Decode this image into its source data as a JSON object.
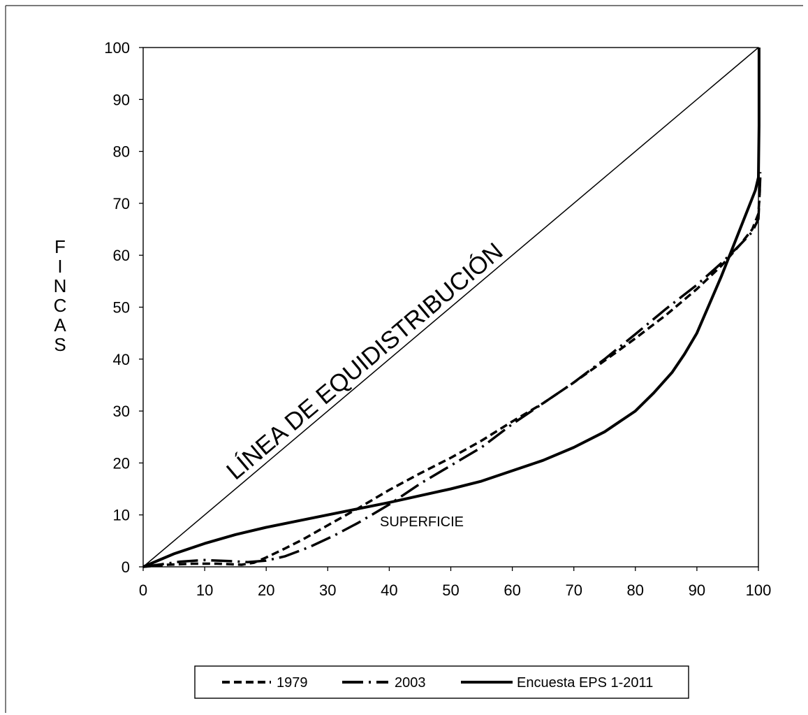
{
  "chart_data": {
    "type": "line",
    "title": "",
    "xlabel": "SUPERFICIE",
    "ylabel": "FINCAS",
    "xlim": [
      0,
      100
    ],
    "ylim": [
      0,
      100
    ],
    "x_ticks": [
      0,
      10,
      20,
      30,
      40,
      50,
      60,
      70,
      80,
      90,
      100
    ],
    "y_ticks": [
      0,
      10,
      20,
      30,
      40,
      50,
      60,
      70,
      80,
      90,
      100
    ],
    "grid": false,
    "legend_position": "bottom",
    "annotation": "LÍNEA DE EQUIDISTRIBUCIÓN",
    "equidistribution_line": {
      "points": [
        [
          0,
          0
        ],
        [
          100,
          100
        ]
      ],
      "color": "#000000"
    },
    "series": [
      {
        "name": "1979",
        "style": "dashed",
        "color": "#000000",
        "points": [
          [
            0,
            0
          ],
          [
            2,
            0.2
          ],
          [
            4,
            0.4
          ],
          [
            8,
            0.6
          ],
          [
            12,
            0.6
          ],
          [
            16,
            0.4
          ],
          [
            18,
            0.8
          ],
          [
            20,
            1.8
          ],
          [
            23,
            3.5
          ],
          [
            26,
            5.3
          ],
          [
            30,
            8
          ],
          [
            35,
            11.3
          ],
          [
            40,
            14.8
          ],
          [
            45,
            18
          ],
          [
            50,
            21
          ],
          [
            55,
            24.3
          ],
          [
            60,
            28
          ],
          [
            65,
            31.5
          ],
          [
            70,
            35.5
          ],
          [
            75,
            39.7
          ],
          [
            80,
            44
          ],
          [
            85,
            48.5
          ],
          [
            90,
            53.5
          ],
          [
            94,
            58
          ],
          [
            97,
            62
          ],
          [
            99,
            65
          ],
          [
            100,
            68
          ],
          [
            100.2,
            72
          ],
          [
            100.3,
            76
          ]
        ]
      },
      {
        "name": "2003",
        "style": "dash-dot",
        "color": "#000000",
        "points": [
          [
            0,
            0
          ],
          [
            3,
            0.5
          ],
          [
            6,
            1
          ],
          [
            10,
            1.3
          ],
          [
            14,
            1.1
          ],
          [
            17,
            0.9
          ],
          [
            20,
            1.2
          ],
          [
            23,
            2
          ],
          [
            27,
            3.8
          ],
          [
            31,
            6
          ],
          [
            35,
            8.5
          ],
          [
            40,
            12
          ],
          [
            45,
            16
          ],
          [
            50,
            19.5
          ],
          [
            55,
            23
          ],
          [
            60,
            27.5
          ],
          [
            65,
            31.5
          ],
          [
            70,
            35.5
          ],
          [
            75,
            40
          ],
          [
            80,
            44.8
          ],
          [
            85,
            49.7
          ],
          [
            90,
            54.3
          ],
          [
            94,
            58.5
          ],
          [
            97,
            62
          ],
          [
            99,
            64.5
          ],
          [
            100,
            67
          ],
          [
            100.2,
            72
          ],
          [
            100.3,
            75
          ]
        ]
      },
      {
        "name": "Encuesta EPS 1-2011",
        "style": "solid",
        "color": "#000000",
        "points": [
          [
            0,
            0
          ],
          [
            5,
            2.5
          ],
          [
            10,
            4.5
          ],
          [
            15,
            6.2
          ],
          [
            20,
            7.6
          ],
          [
            25,
            8.8
          ],
          [
            30,
            10
          ],
          [
            35,
            11.2
          ],
          [
            40,
            12.4
          ],
          [
            45,
            13.7
          ],
          [
            50,
            15
          ],
          [
            55,
            16.5
          ],
          [
            60,
            18.5
          ],
          [
            65,
            20.5
          ],
          [
            70,
            23
          ],
          [
            75,
            26
          ],
          [
            80,
            30
          ],
          [
            83,
            33.5
          ],
          [
            86,
            37.5
          ],
          [
            88,
            41
          ],
          [
            90,
            45
          ],
          [
            92,
            50.5
          ],
          [
            94,
            56
          ],
          [
            96,
            62
          ],
          [
            97.5,
            66.5
          ],
          [
            98.5,
            69.5
          ],
          [
            99.5,
            72.5
          ],
          [
            100,
            75
          ],
          [
            100.1,
            85
          ],
          [
            100.1,
            100
          ]
        ]
      }
    ]
  },
  "legend": {
    "items": [
      {
        "label": "1979",
        "style": "dashed"
      },
      {
        "label": "2003",
        "style": "dash-dot"
      },
      {
        "label": "Encuesta EPS 1-2011",
        "style": "solid"
      }
    ]
  }
}
